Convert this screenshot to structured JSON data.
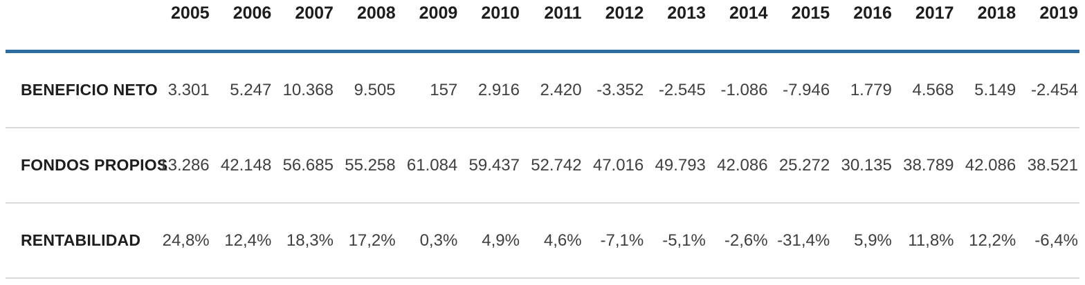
{
  "table": {
    "years": [
      "2005",
      "2006",
      "2007",
      "2008",
      "2009",
      "2010",
      "2011",
      "2012",
      "2013",
      "2014",
      "2015",
      "2016",
      "2017",
      "2018",
      "2019"
    ],
    "rows": [
      {
        "label": "BENEFICIO NETO",
        "values": [
          "3.301",
          "5.247",
          "10.368",
          "9.505",
          "157",
          "2.916",
          "2.420",
          "-3.352",
          "-2.545",
          "-1.086",
          "-7.946",
          "1.779",
          "4.568",
          "5.149",
          "-2.454"
        ]
      },
      {
        "label": "FONDOS PROPIOS",
        "values": [
          "13.286",
          "42.148",
          "56.685",
          "55.258",
          "61.084",
          "59.437",
          "52.742",
          "47.016",
          "49.793",
          "42.086",
          "25.272",
          "30.135",
          "38.789",
          "42.086",
          "38.521"
        ]
      },
      {
        "label": "RENTABILIDAD",
        "values": [
          "24,8%",
          "12,4%",
          "18,3%",
          "17,2%",
          "0,3%",
          "4,9%",
          "4,6%",
          "-7,1%",
          "-5,1%",
          "-2,6%",
          "-31,4%",
          "5,9%",
          "11,8%",
          "12,2%",
          "-6,4%"
        ]
      }
    ]
  },
  "colors": {
    "header_rule": "#2c6d9e",
    "row_divider": "#d9d9d9",
    "header_text": "#1d1d1d",
    "value_text": "#3f3f3f"
  },
  "chart_data": {
    "type": "table",
    "categories": [
      "2005",
      "2006",
      "2007",
      "2008",
      "2009",
      "2010",
      "2011",
      "2012",
      "2013",
      "2014",
      "2015",
      "2016",
      "2017",
      "2018",
      "2019"
    ],
    "series": [
      {
        "name": "BENEFICIO NETO",
        "values": [
          3301,
          5247,
          10368,
          9505,
          157,
          2916,
          2420,
          -3352,
          -2545,
          -1086,
          -7946,
          1779,
          4568,
          5149,
          -2454
        ]
      },
      {
        "name": "FONDOS PROPIOS",
        "values": [
          13286,
          42148,
          56685,
          55258,
          61084,
          59437,
          52742,
          47016,
          49793,
          42086,
          25272,
          30135,
          38789,
          42086,
          38521
        ]
      },
      {
        "name": "RENTABILIDAD (%)",
        "values": [
          24.8,
          12.4,
          18.3,
          17.2,
          0.3,
          4.9,
          4.6,
          -7.1,
          -5.1,
          -2.6,
          -31.4,
          5.9,
          11.8,
          12.2,
          -6.4
        ]
      }
    ],
    "title": "",
    "xlabel": "",
    "ylabel": "",
    "number_format": "es-ES (dot thousands separator, comma decimal)"
  }
}
